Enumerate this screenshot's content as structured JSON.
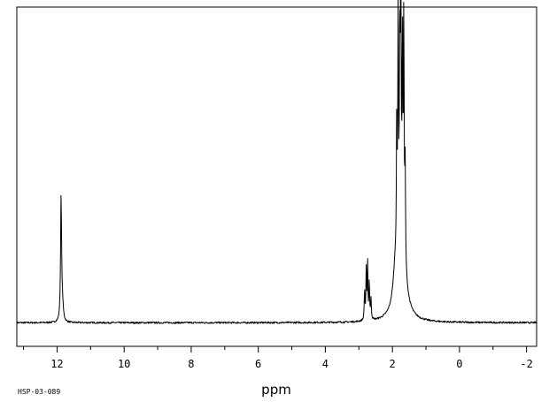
{
  "chart_data": {
    "type": "line",
    "title": "",
    "xlabel": "ppm",
    "ylabel": "",
    "sample_id": "HSP-03-089",
    "x_axis": {
      "min": -2.3,
      "max": 13.2,
      "reversed": true,
      "major_ticks": [
        12,
        10,
        8,
        6,
        4,
        2,
        0,
        -2
      ],
      "tick_labels": [
        "12",
        "10",
        "8",
        "6",
        "4",
        "2",
        "0",
        "-2"
      ],
      "minor_tick_step": 1
    },
    "y_axis": {
      "min": -0.08,
      "max": 1.07,
      "shown": false
    },
    "grid": false,
    "series": [
      {
        "color": "#000000",
        "baseline": 0.0,
        "peaks": [
          {
            "ppm": 11.88,
            "height": 0.42,
            "width": 0.018
          },
          {
            "ppm": 11.84,
            "height": 0.05,
            "width": 0.03
          },
          {
            "ppm": 2.83,
            "height": 0.1,
            "width": 0.012
          },
          {
            "ppm": 2.78,
            "height": 0.17,
            "width": 0.012
          },
          {
            "ppm": 2.74,
            "height": 0.2,
            "width": 0.011
          },
          {
            "ppm": 2.69,
            "height": 0.13,
            "width": 0.012
          },
          {
            "ppm": 2.64,
            "height": 0.07,
            "width": 0.014
          },
          {
            "ppm": 1.92,
            "height": 0.08,
            "width": 0.07
          },
          {
            "ppm": 1.87,
            "height": 0.46,
            "width": 0.012
          },
          {
            "ppm": 1.83,
            "height": 0.76,
            "width": 0.011
          },
          {
            "ppm": 1.78,
            "height": 0.6,
            "width": 0.011
          },
          {
            "ppm": 1.75,
            "height": 0.88,
            "width": 0.011
          },
          {
            "ppm": 1.7,
            "height": 0.63,
            "width": 0.011
          },
          {
            "ppm": 1.66,
            "height": 0.8,
            "width": 0.011
          },
          {
            "ppm": 1.62,
            "height": 0.34,
            "width": 0.013
          },
          {
            "ppm": 1.75,
            "height": 0.38,
            "width": 0.12
          }
        ]
      }
    ]
  }
}
